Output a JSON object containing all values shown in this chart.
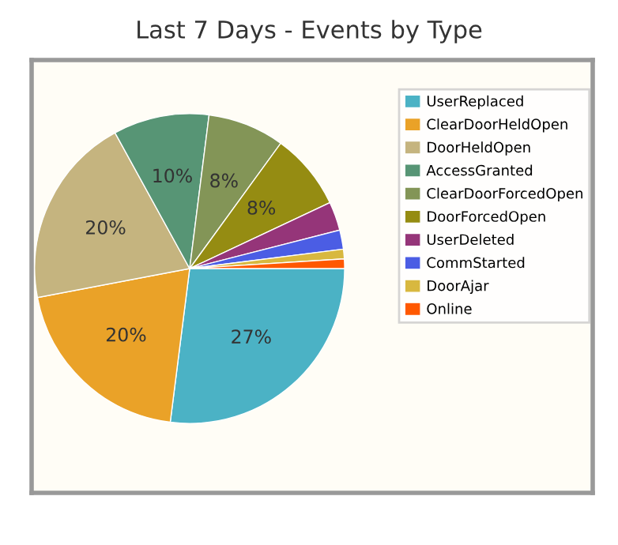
{
  "chart_data": {
    "type": "pie",
    "title": "Last 7 Days - Events by Type",
    "categories": [
      "UserReplaced",
      "ClearDoorHeldOpen",
      "DoorHeldOpen",
      "AccessGranted",
      "ClearDoorForcedOpen",
      "DoorForcedOpen",
      "UserDeleted",
      "CommStarted",
      "DoorAjar",
      "Online"
    ],
    "values": [
      27,
      20,
      20,
      10,
      8,
      8,
      3,
      2,
      1,
      1
    ],
    "value_labels": [
      "27%",
      "20%",
      "20%",
      "10%",
      "8%",
      "8%",
      null,
      null,
      null,
      null
    ],
    "colors": [
      "#4bb2c5",
      "#eaa228",
      "#c5b47f",
      "#579575",
      "#839557",
      "#958c12",
      "#953579",
      "#4b5de4",
      "#d8b83f",
      "#ff5800"
    ],
    "legend": "right"
  }
}
